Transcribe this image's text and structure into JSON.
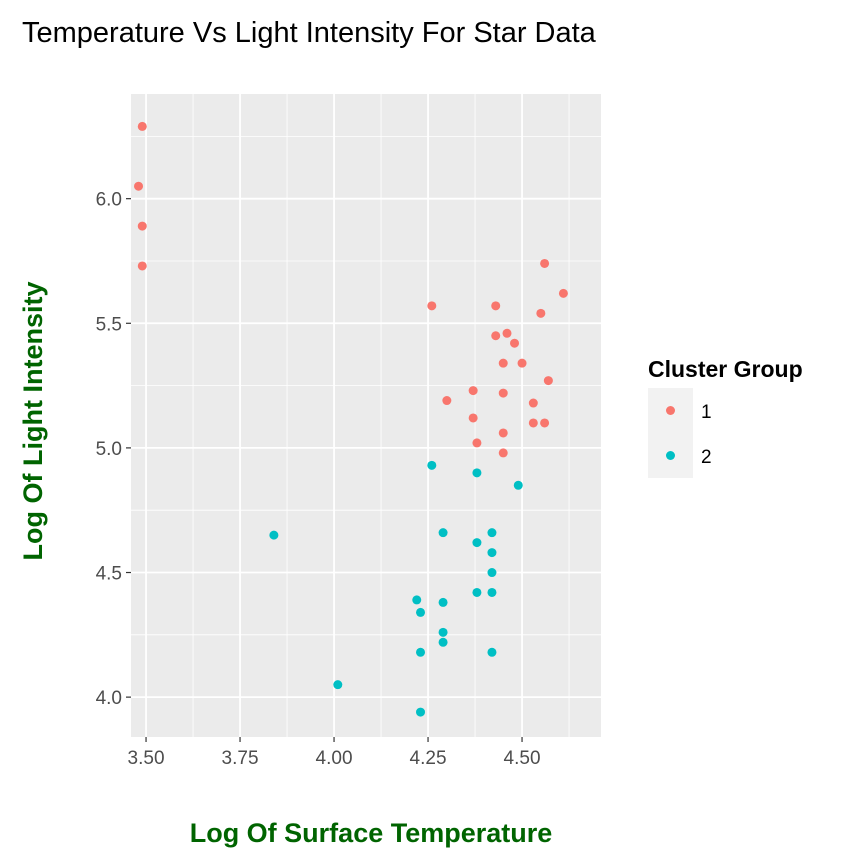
{
  "chart_data": {
    "type": "scatter",
    "title": "Temperature Vs Light Intensity For Star Data",
    "xlabel": "Log Of Surface Temperature",
    "ylabel": "Log Of Light Intensity",
    "xlim": [
      3.46,
      4.71
    ],
    "ylim": [
      3.84,
      6.42
    ],
    "x_ticks": [
      "3.50",
      "3.75",
      "4.00",
      "4.25",
      "4.50"
    ],
    "y_ticks": [
      "4.0",
      "4.5",
      "5.0",
      "5.5",
      "6.0"
    ],
    "grid": true,
    "legend": {
      "title": "Cluster Group",
      "placement": "right",
      "entries": [
        {
          "label": "1",
          "color": "#F8766D"
        },
        {
          "label": "2",
          "color": "#00BFC4"
        }
      ]
    },
    "series": [
      {
        "name": "1",
        "color": "#F8766D",
        "points": [
          [
            3.49,
            6.29
          ],
          [
            3.48,
            6.05
          ],
          [
            3.49,
            5.89
          ],
          [
            3.49,
            5.73
          ],
          [
            4.56,
            5.74
          ],
          [
            4.61,
            5.62
          ],
          [
            4.26,
            5.57
          ],
          [
            4.43,
            5.57
          ],
          [
            4.55,
            5.54
          ],
          [
            4.46,
            5.46
          ],
          [
            4.43,
            5.45
          ],
          [
            4.48,
            5.42
          ],
          [
            4.45,
            5.34
          ],
          [
            4.5,
            5.34
          ],
          [
            4.57,
            5.27
          ],
          [
            4.37,
            5.23
          ],
          [
            4.45,
            5.22
          ],
          [
            4.3,
            5.19
          ],
          [
            4.53,
            5.18
          ],
          [
            4.37,
            5.12
          ],
          [
            4.53,
            5.1
          ],
          [
            4.56,
            5.1
          ],
          [
            4.45,
            5.06
          ],
          [
            4.38,
            5.02
          ],
          [
            4.45,
            4.98
          ]
        ]
      },
      {
        "name": "2",
        "color": "#00BFC4",
        "points": [
          [
            4.26,
            4.93
          ],
          [
            4.38,
            4.9
          ],
          [
            4.49,
            4.85
          ],
          [
            3.84,
            4.65
          ],
          [
            4.29,
            4.66
          ],
          [
            4.42,
            4.66
          ],
          [
            4.38,
            4.62
          ],
          [
            4.42,
            4.58
          ],
          [
            4.42,
            4.5
          ],
          [
            4.38,
            4.42
          ],
          [
            4.42,
            4.42
          ],
          [
            4.22,
            4.39
          ],
          [
            4.29,
            4.38
          ],
          [
            4.23,
            4.34
          ],
          [
            4.29,
            4.26
          ],
          [
            4.29,
            4.22
          ],
          [
            4.23,
            4.18
          ],
          [
            4.42,
            4.18
          ],
          [
            4.01,
            4.05
          ],
          [
            4.23,
            3.94
          ]
        ]
      }
    ]
  }
}
